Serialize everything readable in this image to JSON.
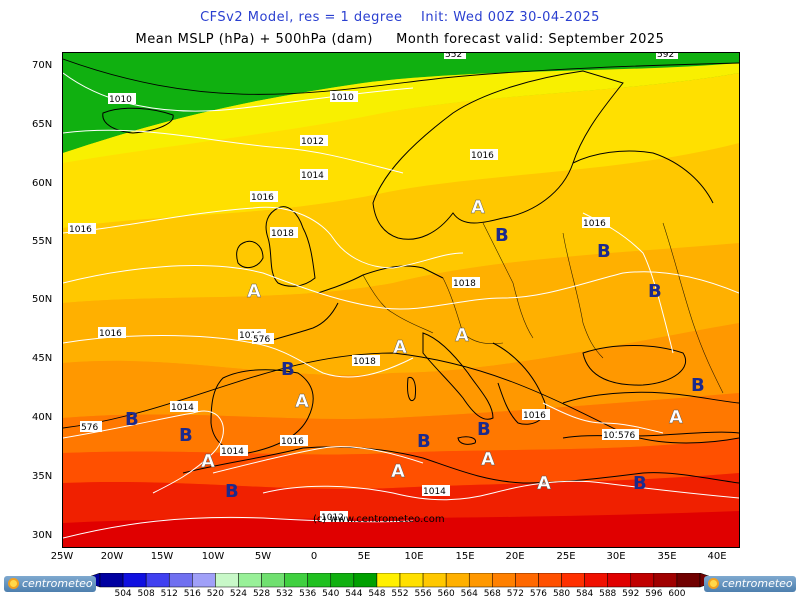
{
  "titles": {
    "line1": "CFSv2 Model, res = 1 degree    Init: Wed 00Z 30-04-2025",
    "line2": "Mean MSLP (hPa) + 500hPa (dam)     Month forecast valid: September 2025"
  },
  "map": {
    "lat_ticks": [
      "70N",
      "65N",
      "60N",
      "55N",
      "50N",
      "45N",
      "40N",
      "35N",
      "30N"
    ],
    "lon_ticks": [
      "25W",
      "20W",
      "15W",
      "10W",
      "5W",
      "0",
      "5E",
      "10E",
      "15E",
      "20E",
      "25E",
      "30E",
      "35E",
      "40E"
    ],
    "extent": {
      "lon": [
        -25,
        42
      ],
      "lat": [
        29,
        71
      ]
    },
    "isobar_labels": [
      "1010",
      "1010",
      "1012",
      "1014",
      "1016",
      "1016",
      "1016",
      "1018",
      "1018",
      "1016",
      "1016",
      "1016",
      "1014",
      "1014",
      "1016",
      "1018",
      "1016",
      "1016",
      "1014",
      "1012"
    ],
    "height_labels": [
      "576",
      "576",
      "576",
      "552",
      "592"
    ],
    "high_label": "A",
    "low_label": "B",
    "watermark": "(c) www.centrometeo.com",
    "colors": {
      "high_marker": "#ffffff",
      "low_marker": "#1c2a8c",
      "isobar": "#ffffff",
      "coast": "#000000"
    }
  },
  "colorbar": {
    "levels": [
      "504",
      "508",
      "512",
      "516",
      "520",
      "524",
      "528",
      "532",
      "536",
      "540",
      "544",
      "548",
      "552",
      "556",
      "560",
      "564",
      "568",
      "572",
      "576",
      "580",
      "584",
      "588",
      "592",
      "596",
      "600"
    ],
    "colors": [
      "#0000a0",
      "#1010e0",
      "#4040f0",
      "#7070f0",
      "#a0a0f8",
      "#c8f8c8",
      "#98f098",
      "#70e070",
      "#40d040",
      "#20c020",
      "#10b010",
      "#00a000",
      "#fff000",
      "#ffe000",
      "#ffc800",
      "#ffb000",
      "#ff9800",
      "#ff8000",
      "#ff6800",
      "#ff5000",
      "#ff3000",
      "#f01000",
      "#e00000",
      "#c00000",
      "#a00000",
      "#700000"
    ]
  },
  "logos": {
    "left": "centrometeo",
    "right": "centrometeo"
  }
}
